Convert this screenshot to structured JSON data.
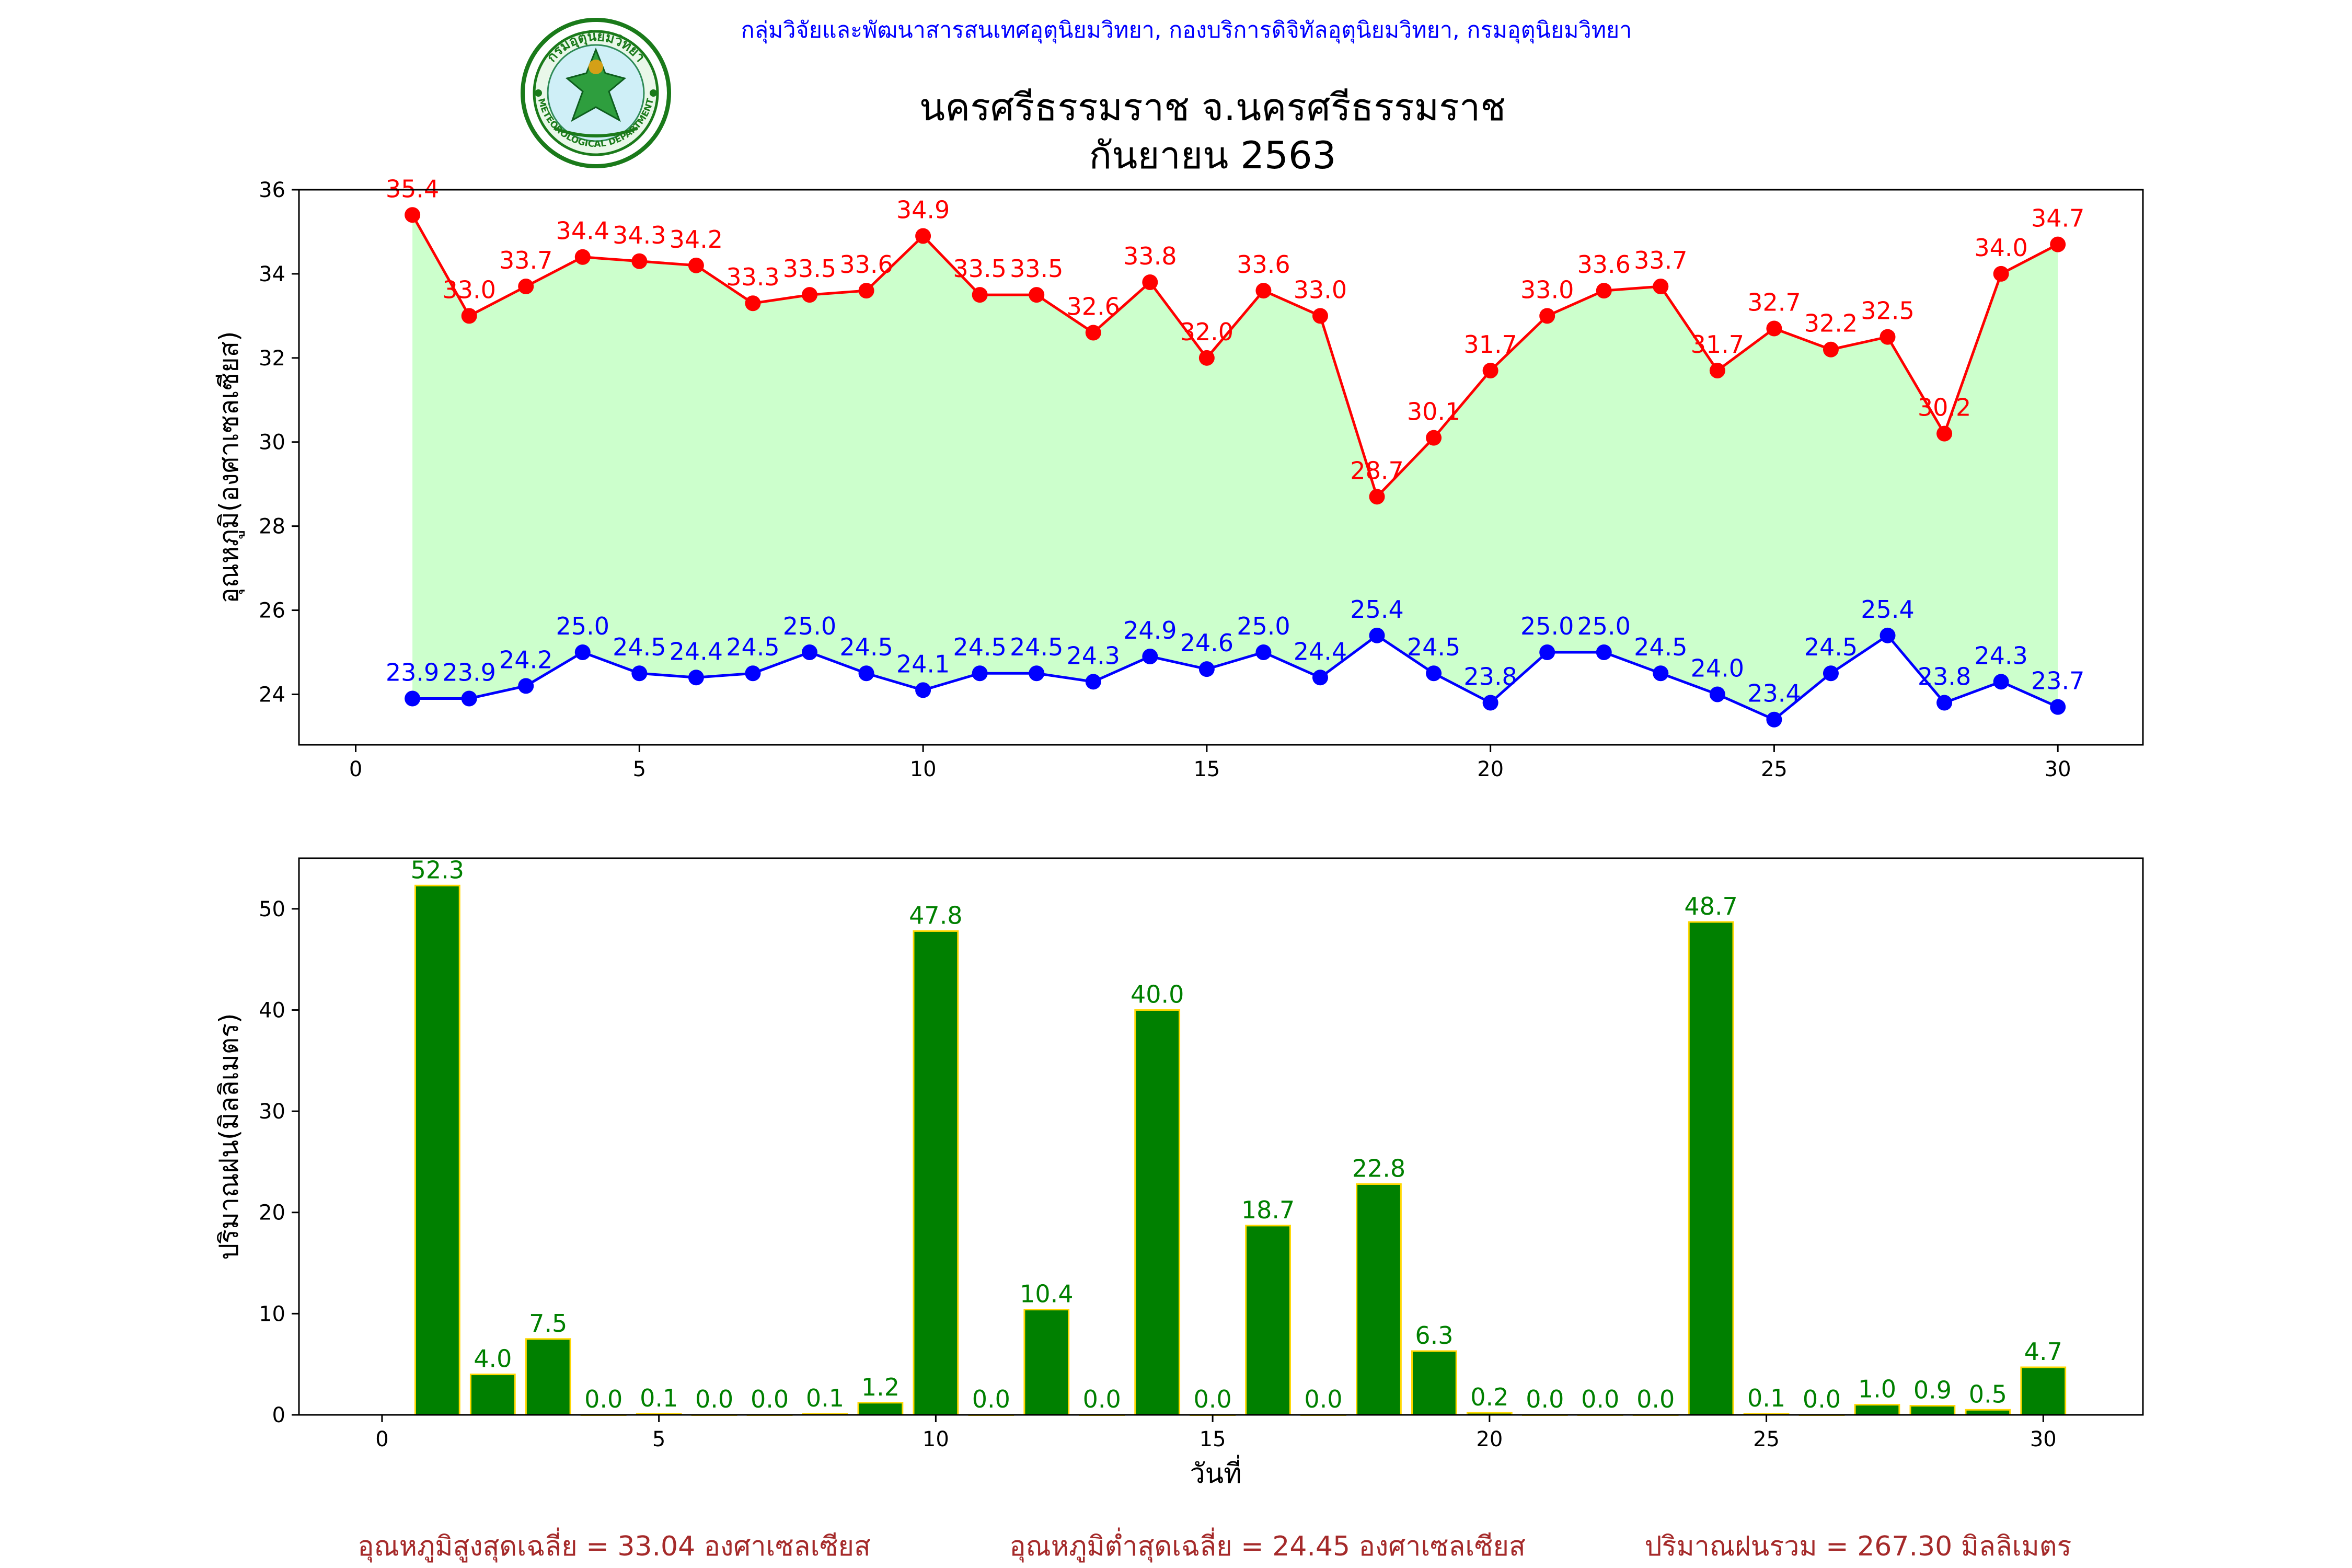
{
  "header": {
    "org_line": "กลุ่มวิจัยและพัฒนาสารสนเทศอุตุนิยมวิทยา, กองบริการดิจิทัลอุตุนิยมวิทยา, กรมอุตุนิยมวิทยา",
    "title_line1": "นครศรีธรรมราช จ.นครศรีธรรมราช",
    "title_line2": "กันยายน 2563",
    "logo_text_top": "กรมอุตุนิยมวิทยา",
    "logo_text_bottom": "METEOROLOGICAL DEPARTMENT"
  },
  "footer": {
    "avg_max": "อุณหภูมิสูงสุดเฉลี่ย = 33.04 องศาเซลเซียส",
    "avg_min": "อุณหภูมิต่ำสุดเฉลี่ย = 24.45 องศาเซลเซียส",
    "total_rain": "ปริมาณฝนรวม = 267.30 มิลลิเมตร"
  },
  "colors": {
    "max_line": "#ff0000",
    "min_line": "#0000ff",
    "fill": "#ccffcc",
    "bar_fill": "#008000",
    "bar_edge": "#ffd700",
    "bar_label": "#008000",
    "org_text": "#0000ff",
    "footer_text": "#a52a2a"
  },
  "chart_data": [
    {
      "type": "line",
      "ylabel": "อุณหภูมิ(องศาเซลเซียส)",
      "xlabel": "",
      "xlim": [
        -1,
        31.5
      ],
      "ylim": [
        22.8,
        36.0
      ],
      "xticks": [
        0,
        5,
        10,
        15,
        20,
        25,
        30
      ],
      "yticks": [
        24,
        26,
        28,
        30,
        32,
        34,
        36
      ],
      "x": [
        1,
        2,
        3,
        4,
        5,
        6,
        7,
        8,
        9,
        10,
        11,
        12,
        13,
        14,
        15,
        16,
        17,
        18,
        19,
        20,
        21,
        22,
        23,
        24,
        25,
        26,
        27,
        28,
        29,
        30
      ],
      "fill_between": true,
      "series": [
        {
          "values": [
            35.4,
            33.0,
            33.7,
            34.4,
            34.3,
            34.2,
            33.3,
            33.5,
            33.6,
            34.9,
            33.5,
            33.5,
            32.6,
            33.8,
            32.0,
            33.6,
            33.0,
            28.7,
            30.1,
            31.7,
            33.0,
            33.6,
            33.7,
            31.7,
            32.7,
            32.2,
            32.5,
            30.2,
            34.0,
            34.7
          ]
        },
        {
          "values": [
            23.9,
            23.9,
            24.2,
            25.0,
            24.5,
            24.4,
            24.5,
            25.0,
            24.5,
            24.1,
            24.5,
            24.5,
            24.3,
            24.9,
            24.6,
            25.0,
            24.4,
            25.4,
            24.5,
            23.8,
            25.0,
            25.0,
            24.5,
            24.0,
            23.4,
            24.5,
            25.4,
            23.8,
            24.3,
            23.7
          ]
        }
      ]
    },
    {
      "type": "bar",
      "ylabel": "ปริมาณฝน(มิลลิเมตร)",
      "xlabel": "วันที่",
      "xlim": [
        -1.5,
        31.8
      ],
      "ylim": [
        0,
        55
      ],
      "xticks": [
        0,
        5,
        10,
        15,
        20,
        25,
        30
      ],
      "yticks": [
        0,
        10,
        20,
        30,
        40,
        50
      ],
      "x": [
        1,
        2,
        3,
        4,
        5,
        6,
        7,
        8,
        9,
        10,
        11,
        12,
        13,
        14,
        15,
        16,
        17,
        18,
        19,
        20,
        21,
        22,
        23,
        24,
        25,
        26,
        27,
        28,
        29,
        30
      ],
      "values": [
        52.3,
        4.0,
        7.5,
        0.0,
        0.1,
        0.0,
        0.0,
        0.1,
        1.2,
        47.8,
        0.0,
        10.4,
        0.0,
        40.0,
        0.0,
        18.7,
        0.0,
        22.8,
        6.3,
        0.2,
        0.0,
        0.0,
        0.0,
        48.7,
        0.1,
        0.0,
        1.0,
        0.9,
        0.5,
        4.7
      ]
    }
  ]
}
